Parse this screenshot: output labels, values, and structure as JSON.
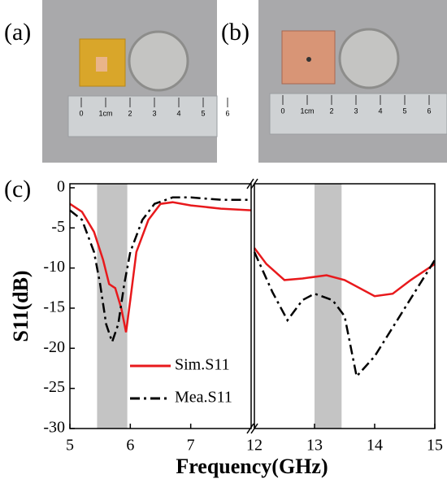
{
  "panel_labels": [
    "(a)",
    "(b)",
    "(c)"
  ],
  "photos": {
    "a": {
      "ruler_labels": [
        "0",
        "1cm",
        "2",
        "3",
        "4",
        "5",
        "6"
      ]
    },
    "b": {
      "ruler_labels": [
        "0",
        "1cm",
        "2",
        "3",
        "4",
        "5",
        "6"
      ]
    }
  },
  "chart_data": [
    {
      "type": "line",
      "ylabel": "S11(dB)",
      "xlabel": "Frequency(GHz)",
      "xlim": [
        5,
        8
      ],
      "xticks": [
        5,
        6,
        7
      ],
      "ylim": [
        -30,
        0.5
      ],
      "yticks": [
        0,
        -5,
        -10,
        -15,
        -20,
        -25,
        -30
      ],
      "shade": [
        5.45,
        5.95
      ],
      "legend": "lower right",
      "series": [
        {
          "name": "Sim.S11",
          "color": "#e8191c",
          "style": "solid",
          "x": [
            5,
            5.2,
            5.4,
            5.55,
            5.65,
            5.75,
            5.85,
            5.93,
            6.0,
            6.1,
            6.3,
            6.5,
            6.7,
            7,
            7.5,
            8
          ],
          "values": [
            -2,
            -3,
            -5.5,
            -9,
            -12,
            -12.5,
            -15,
            -18,
            -14,
            -8,
            -4,
            -2,
            -1.8,
            -2.2,
            -2.6,
            -2.8
          ]
        },
        {
          "name": "Mea.S11",
          "color": "#000000",
          "style": "dashdot",
          "x": [
            5,
            5.2,
            5.4,
            5.5,
            5.6,
            5.7,
            5.8,
            5.9,
            6.0,
            6.2,
            6.4,
            6.7,
            7,
            7.5,
            8
          ],
          "values": [
            -2.8,
            -4,
            -8,
            -12,
            -17,
            -19.2,
            -17,
            -12,
            -8,
            -4,
            -2,
            -1.2,
            -1.2,
            -1.5,
            -1.5
          ]
        }
      ]
    },
    {
      "type": "line",
      "xlim": [
        12,
        15
      ],
      "xticks": [
        12,
        13,
        14,
        15
      ],
      "ylim": [
        -30,
        0.5
      ],
      "shade": [
        13,
        13.45
      ],
      "series": [
        {
          "color": "#e8191c",
          "style": "solid",
          "x": [
            12,
            12.2,
            12.5,
            12.8,
            13.2,
            13.5,
            14,
            14.3,
            14.6,
            15
          ],
          "values": [
            -7.5,
            -9.5,
            -11.5,
            -11.3,
            -10.9,
            -11.5,
            -13.5,
            -13.2,
            -11.5,
            -9.5
          ]
        },
        {
          "color": "#000000",
          "style": "dashdot",
          "x": [
            12,
            12.3,
            12.55,
            12.8,
            13,
            13.3,
            13.5,
            13.7,
            14,
            14.5,
            15
          ],
          "values": [
            -8,
            -13,
            -16.5,
            -14,
            -13.2,
            -14,
            -16,
            -23.5,
            -21,
            -15,
            -9
          ]
        }
      ]
    }
  ]
}
